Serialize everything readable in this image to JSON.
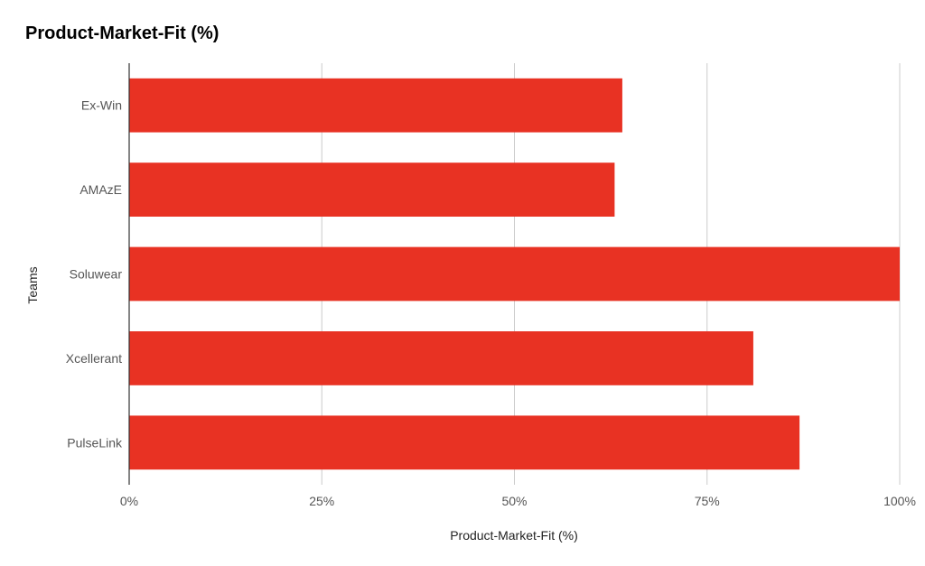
{
  "chart_data": {
    "type": "bar",
    "orientation": "horizontal",
    "title": "Product-Market-Fit (%)",
    "xlabel": "Product-Market-Fit (%)",
    "ylabel": "Teams",
    "categories": [
      "Ex-Win",
      "AMAzE",
      "Soluwear",
      "Xcellerant",
      "PulseLink"
    ],
    "values": [
      64,
      63,
      100,
      81,
      87
    ],
    "xlim": [
      0,
      100
    ],
    "x_ticks": [
      0,
      25,
      50,
      75,
      100
    ],
    "x_tick_labels": [
      "0%",
      "25%",
      "50%",
      "75%",
      "100%"
    ],
    "grid": true,
    "legend": "none",
    "bar_color": "#e83223"
  }
}
